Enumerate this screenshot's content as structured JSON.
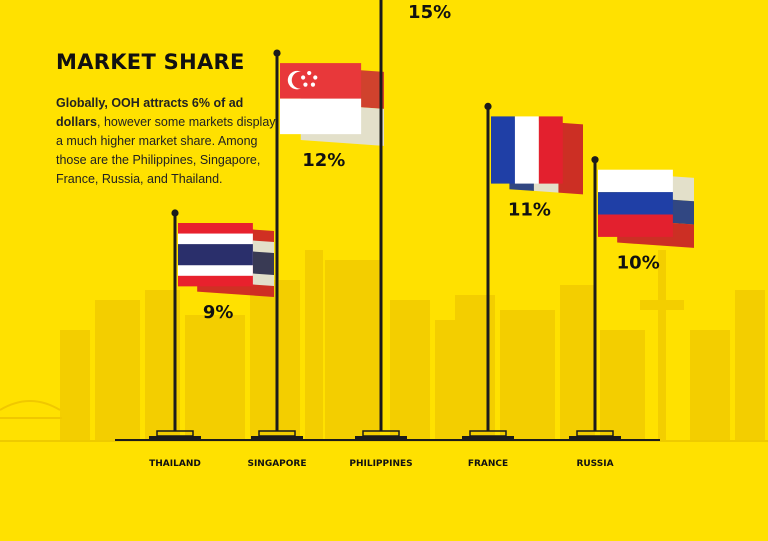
{
  "title": "MARKET SHARE",
  "description": {
    "bold": "Globally, OOH attracts 6% of ad dollars",
    "rest": ", however some markets display a much higher market share. Among those are the Philippines, Singapore, France, Russia, and Thailand."
  },
  "colors": {
    "background": "#FFE100",
    "skyline": "#F3CE00",
    "ink": "#1B1B1B"
  },
  "chart_data": {
    "type": "bar",
    "categories": [
      "THAILAND",
      "SINGAPORE",
      "PHILIPPINES",
      "FRANCE",
      "RUSSIA"
    ],
    "values": [
      9,
      12,
      15,
      11,
      10
    ],
    "value_labels": [
      "9%",
      "12%",
      "15%",
      "11%",
      "10%"
    ],
    "unit": "%",
    "marks": [
      "thailand-flag-icon",
      "singapore-flag-icon",
      "philippines-flag-icon",
      "france-flag-icon",
      "russia-flag-icon"
    ]
  }
}
